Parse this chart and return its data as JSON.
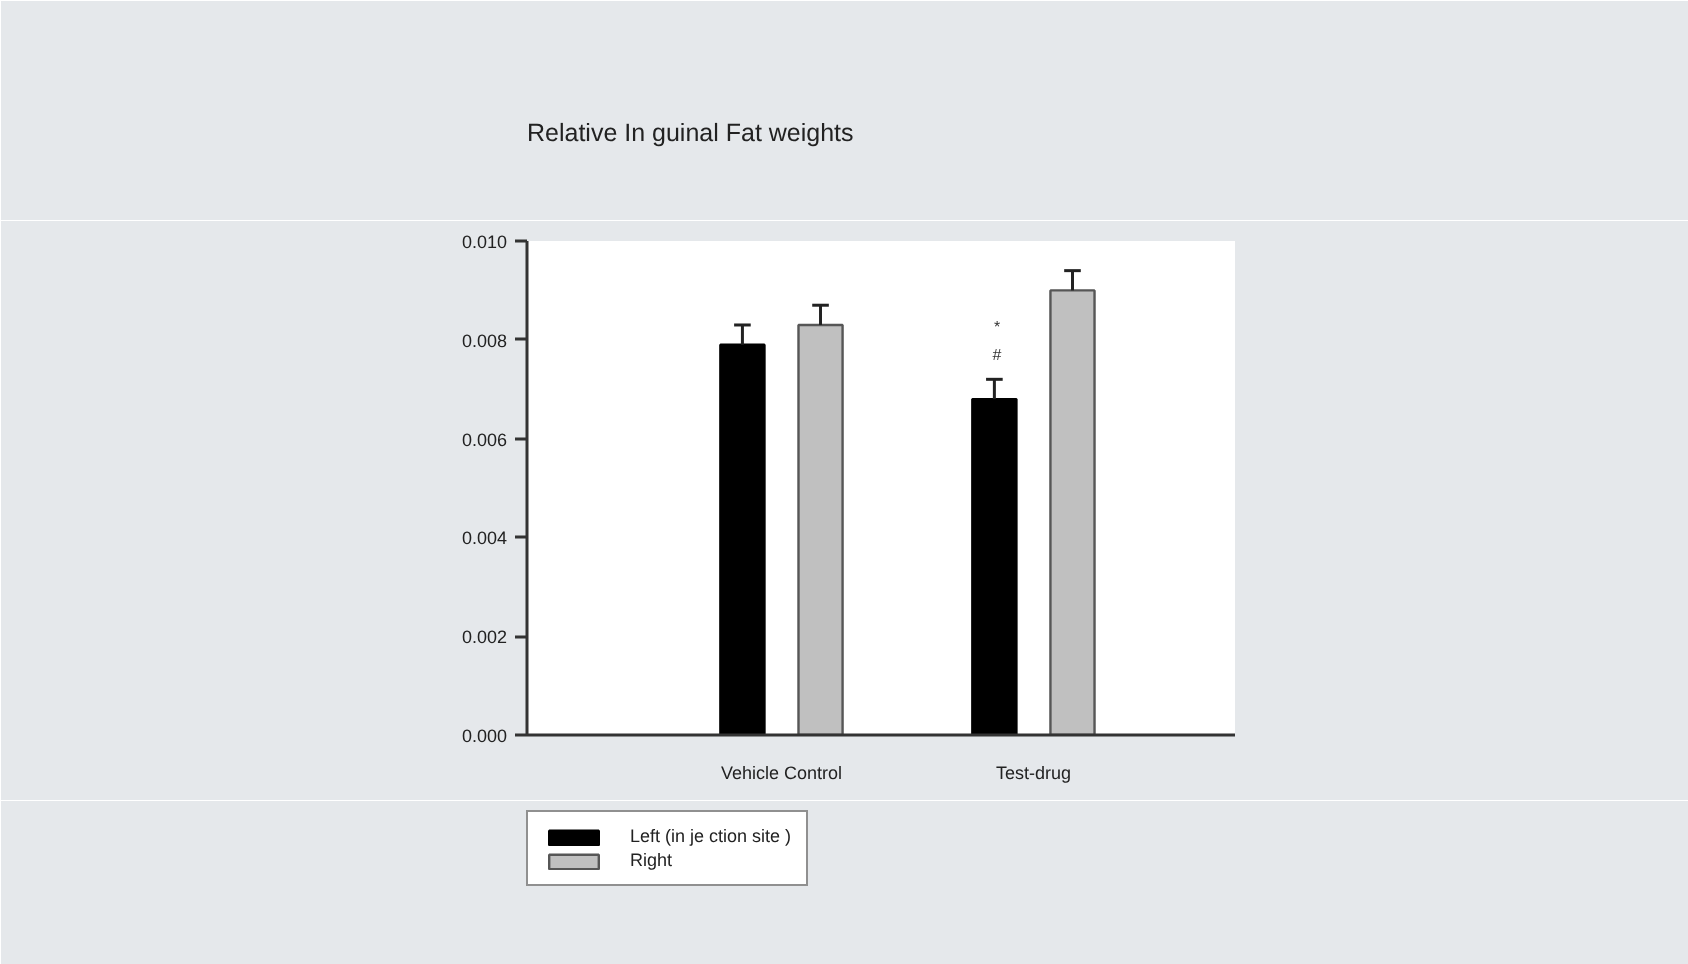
{
  "chart_data": {
    "type": "bar",
    "title": "Relative In guinal Fat weights",
    "categories": [
      "Vehicle Control",
      "Test-drug"
    ],
    "series": [
      {
        "name": "Left (in je ction site )",
        "color": "#000000",
        "values": [
          0.0079,
          0.0068
        ],
        "errors": [
          0.0004,
          0.0004
        ]
      },
      {
        "name": "Right",
        "color": "#c0c0c0",
        "values": [
          0.0083,
          0.009
        ],
        "errors": [
          0.0004,
          0.0004
        ]
      }
    ],
    "ylim": [
      0,
      0.01
    ],
    "yticks": [
      {
        "value": 0,
        "label": "0.000"
      },
      {
        "value": 0.002,
        "label": "0.002"
      },
      {
        "value": 0.004,
        "label": "0.004"
      },
      {
        "value": 0.006,
        "label": "0.006"
      },
      {
        "value": 0.008,
        "label": "0.008"
      },
      {
        "value": 0.01,
        "label": "0.010"
      }
    ],
    "annotations": [
      "*",
      "#"
    ],
    "legend": "bottom left",
    "grid": false
  }
}
